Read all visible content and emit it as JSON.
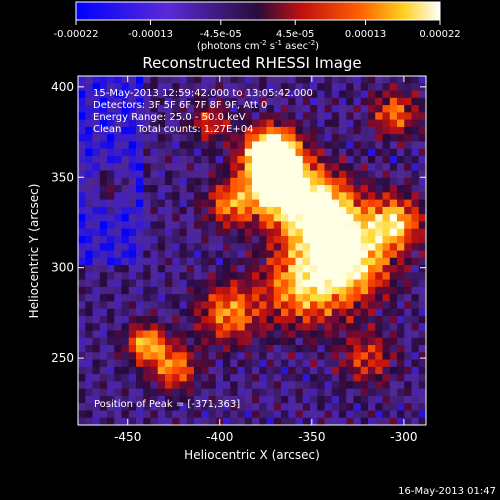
{
  "colorbar": {
    "ticks": [
      "-0.00022",
      "-0.00013",
      "-4.5e-05",
      "4.5e-05",
      "0.00013",
      "0.00022"
    ],
    "tick_values": [
      -0.00022,
      -0.00013,
      -4.5e-05,
      4.5e-05,
      0.00013,
      0.00022
    ],
    "range": [
      -0.00022,
      0.00022
    ],
    "unit_main": "(photons cm",
    "unit_exp1": "-2",
    "unit_mid": " s",
    "unit_exp2": "-1",
    "unit_end": " asec",
    "unit_exp3": "-2",
    "unit_close": ")"
  },
  "chart_data": {
    "type": "heatmap",
    "title": "Reconstructed RHESSI Image",
    "xlabel": "Heliocentric X (arcsec)",
    "ylabel": "Heliocentric Y (arcsec)",
    "xlim": [
      -477,
      -288
    ],
    "ylim": [
      213,
      406
    ],
    "xticks": [
      -450,
      -400,
      -350,
      -300
    ],
    "yticks": [
      250,
      300,
      350,
      400
    ],
    "xtick_labels": [
      "-450",
      "-400",
      "-350",
      "-300"
    ],
    "ytick_labels": [
      "250",
      "300",
      "350",
      "400"
    ],
    "colormap": "blue-purple-red-yellow-white",
    "peak_position": [
      -371,
      363
    ],
    "annotations": [
      "15-May-2013 12:59:42.000 to 13:05:42.000",
      "Detectors: 3F 5F 6F 7F 8F 9F, Att 0",
      "Energy Range: 25.0 - 50.0 keV",
      "Clean     Total counts: 1.27E+04"
    ],
    "peak_label": "Position of Peak = [-371,363]"
  },
  "footer": {
    "timestamp": "16-May-2013 01:47"
  },
  "colors": {
    "background": "#000000",
    "text": "#ffffff"
  }
}
